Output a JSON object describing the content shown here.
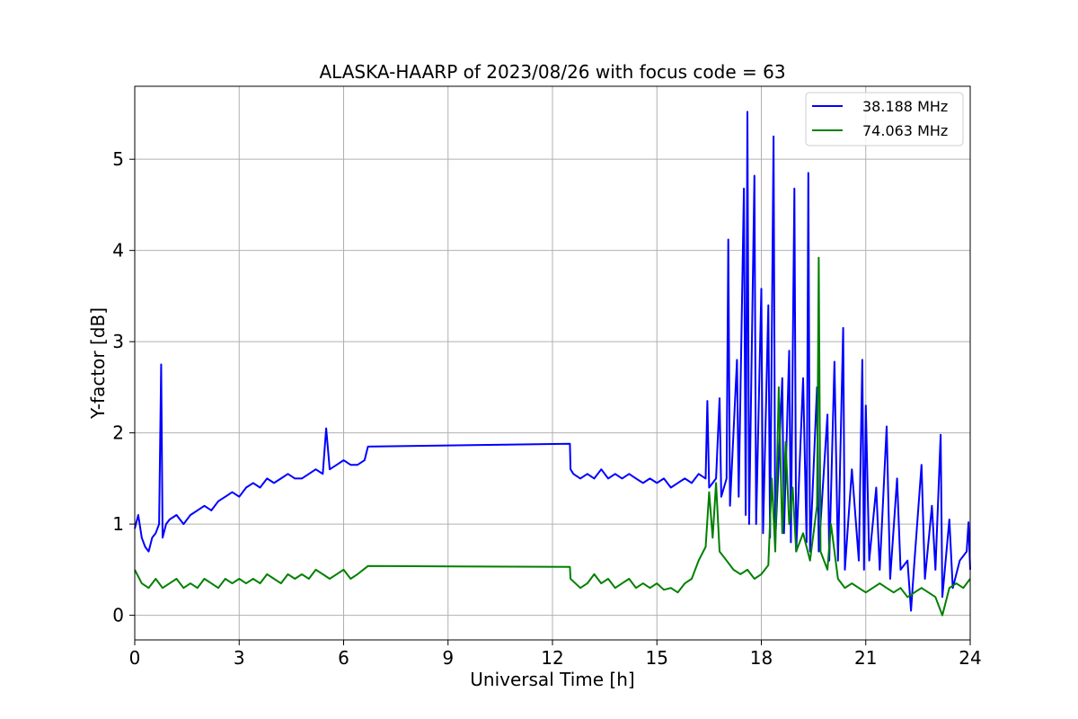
{
  "chart_data": {
    "type": "line",
    "title": "ALASKA-HAARP of 2023/08/26 with focus code = 63",
    "xlabel": "Universal Time [h]",
    "ylabel": "Y-factor [dB]",
    "xlim": [
      0,
      24
    ],
    "ylim": [
      -0.27,
      5.8
    ],
    "xticks": [
      "0",
      "3",
      "6",
      "9",
      "12",
      "15",
      "18",
      "21",
      "24"
    ],
    "yticks": [
      "0",
      "1",
      "2",
      "3",
      "4",
      "5"
    ],
    "grid": true,
    "legend_position": "top-right",
    "series": [
      {
        "name": "38.188 MHz",
        "color": "#0000ff",
        "points": [
          [
            0.0,
            0.95
          ],
          [
            0.1,
            1.1
          ],
          [
            0.2,
            0.85
          ],
          [
            0.3,
            0.75
          ],
          [
            0.4,
            0.7
          ],
          [
            0.5,
            0.85
          ],
          [
            0.6,
            0.9
          ],
          [
            0.7,
            1.0
          ],
          [
            0.76,
            2.75
          ],
          [
            0.8,
            0.85
          ],
          [
            0.9,
            1.0
          ],
          [
            1.0,
            1.05
          ],
          [
            1.2,
            1.1
          ],
          [
            1.4,
            1.0
          ],
          [
            1.6,
            1.1
          ],
          [
            1.8,
            1.15
          ],
          [
            2.0,
            1.2
          ],
          [
            2.2,
            1.15
          ],
          [
            2.4,
            1.25
          ],
          [
            2.6,
            1.3
          ],
          [
            2.8,
            1.35
          ],
          [
            3.0,
            1.3
          ],
          [
            3.2,
            1.4
          ],
          [
            3.4,
            1.45
          ],
          [
            3.6,
            1.4
          ],
          [
            3.8,
            1.5
          ],
          [
            4.0,
            1.45
          ],
          [
            4.2,
            1.5
          ],
          [
            4.4,
            1.55
          ],
          [
            4.6,
            1.5
          ],
          [
            4.8,
            1.5
          ],
          [
            5.0,
            1.55
          ],
          [
            5.2,
            1.6
          ],
          [
            5.4,
            1.55
          ],
          [
            5.5,
            2.05
          ],
          [
            5.6,
            1.6
          ],
          [
            5.8,
            1.65
          ],
          [
            6.0,
            1.7
          ],
          [
            6.2,
            1.65
          ],
          [
            6.4,
            1.65
          ],
          [
            6.6,
            1.7
          ],
          [
            6.7,
            1.85
          ],
          [
            12.5,
            1.88
          ],
          [
            12.52,
            1.6
          ],
          [
            12.6,
            1.55
          ],
          [
            12.8,
            1.5
          ],
          [
            13.0,
            1.55
          ],
          [
            13.2,
            1.5
          ],
          [
            13.4,
            1.6
          ],
          [
            13.6,
            1.5
          ],
          [
            13.8,
            1.55
          ],
          [
            14.0,
            1.5
          ],
          [
            14.2,
            1.55
          ],
          [
            14.4,
            1.5
          ],
          [
            14.6,
            1.45
          ],
          [
            14.8,
            1.5
          ],
          [
            15.0,
            1.45
          ],
          [
            15.2,
            1.5
          ],
          [
            15.4,
            1.4
          ],
          [
            15.6,
            1.45
          ],
          [
            15.8,
            1.5
          ],
          [
            16.0,
            1.45
          ],
          [
            16.2,
            1.55
          ],
          [
            16.4,
            1.5
          ],
          [
            16.45,
            2.35
          ],
          [
            16.5,
            1.4
          ],
          [
            16.7,
            1.5
          ],
          [
            16.8,
            2.38
          ],
          [
            16.85,
            1.3
          ],
          [
            17.0,
            1.5
          ],
          [
            17.05,
            4.12
          ],
          [
            17.1,
            1.2
          ],
          [
            17.3,
            2.8
          ],
          [
            17.35,
            1.3
          ],
          [
            17.5,
            4.68
          ],
          [
            17.55,
            1.1
          ],
          [
            17.6,
            5.52
          ],
          [
            17.65,
            1.0
          ],
          [
            17.8,
            4.82
          ],
          [
            17.85,
            1.0
          ],
          [
            18.0,
            3.58
          ],
          [
            18.05,
            0.9
          ],
          [
            18.2,
            3.4
          ],
          [
            18.25,
            0.85
          ],
          [
            18.35,
            5.25
          ],
          [
            18.4,
            0.8
          ],
          [
            18.6,
            2.6
          ],
          [
            18.65,
            0.9
          ],
          [
            18.8,
            2.9
          ],
          [
            18.85,
            0.8
          ],
          [
            18.95,
            4.68
          ],
          [
            19.0,
            0.7
          ],
          [
            19.2,
            2.6
          ],
          [
            19.3,
            0.8
          ],
          [
            19.35,
            4.85
          ],
          [
            19.4,
            0.7
          ],
          [
            19.6,
            2.5
          ],
          [
            19.65,
            0.7
          ],
          [
            19.9,
            2.2
          ],
          [
            19.95,
            0.6
          ],
          [
            20.1,
            2.78
          ],
          [
            20.2,
            0.6
          ],
          [
            20.35,
            3.15
          ],
          [
            20.4,
            0.5
          ],
          [
            20.6,
            1.6
          ],
          [
            20.8,
            0.6
          ],
          [
            20.9,
            2.8
          ],
          [
            20.95,
            0.5
          ],
          [
            21.0,
            2.3
          ],
          [
            21.1,
            0.6
          ],
          [
            21.3,
            1.4
          ],
          [
            21.4,
            0.5
          ],
          [
            21.6,
            2.07
          ],
          [
            21.7,
            0.4
          ],
          [
            21.9,
            1.5
          ],
          [
            22.0,
            0.5
          ],
          [
            22.2,
            0.6
          ],
          [
            22.3,
            0.05
          ],
          [
            22.4,
            0.6
          ],
          [
            22.6,
            1.65
          ],
          [
            22.7,
            0.4
          ],
          [
            22.9,
            1.2
          ],
          [
            23.0,
            0.5
          ],
          [
            23.15,
            1.98
          ],
          [
            23.2,
            0.2
          ],
          [
            23.4,
            1.05
          ],
          [
            23.5,
            0.3
          ],
          [
            23.7,
            0.6
          ],
          [
            23.9,
            0.7
          ],
          [
            23.95,
            1.02
          ],
          [
            24.0,
            0.5
          ]
        ]
      },
      {
        "name": "74.063 MHz",
        "color": "#008000",
        "points": [
          [
            0.0,
            0.5
          ],
          [
            0.2,
            0.35
          ],
          [
            0.4,
            0.3
          ],
          [
            0.6,
            0.4
          ],
          [
            0.8,
            0.3
          ],
          [
            1.0,
            0.35
          ],
          [
            1.2,
            0.4
          ],
          [
            1.4,
            0.3
          ],
          [
            1.6,
            0.35
          ],
          [
            1.8,
            0.3
          ],
          [
            2.0,
            0.4
          ],
          [
            2.2,
            0.35
          ],
          [
            2.4,
            0.3
          ],
          [
            2.6,
            0.4
          ],
          [
            2.8,
            0.35
          ],
          [
            3.0,
            0.4
          ],
          [
            3.2,
            0.35
          ],
          [
            3.4,
            0.4
          ],
          [
            3.6,
            0.35
          ],
          [
            3.8,
            0.45
          ],
          [
            4.0,
            0.4
          ],
          [
            4.2,
            0.35
          ],
          [
            4.4,
            0.45
          ],
          [
            4.6,
            0.4
          ],
          [
            4.8,
            0.45
          ],
          [
            5.0,
            0.4
          ],
          [
            5.2,
            0.5
          ],
          [
            5.4,
            0.45
          ],
          [
            5.6,
            0.4
          ],
          [
            5.8,
            0.45
          ],
          [
            6.0,
            0.5
          ],
          [
            6.2,
            0.4
          ],
          [
            6.4,
            0.45
          ],
          [
            6.7,
            0.54
          ],
          [
            12.5,
            0.53
          ],
          [
            12.52,
            0.4
          ],
          [
            12.8,
            0.3
          ],
          [
            13.0,
            0.35
          ],
          [
            13.2,
            0.45
          ],
          [
            13.4,
            0.35
          ],
          [
            13.6,
            0.4
          ],
          [
            13.8,
            0.3
          ],
          [
            14.0,
            0.35
          ],
          [
            14.2,
            0.4
          ],
          [
            14.4,
            0.3
          ],
          [
            14.6,
            0.35
          ],
          [
            14.8,
            0.3
          ],
          [
            15.0,
            0.35
          ],
          [
            15.2,
            0.28
          ],
          [
            15.4,
            0.3
          ],
          [
            15.6,
            0.25
          ],
          [
            15.8,
            0.35
          ],
          [
            16.0,
            0.4
          ],
          [
            16.2,
            0.6
          ],
          [
            16.4,
            0.75
          ],
          [
            16.5,
            1.35
          ],
          [
            16.6,
            0.85
          ],
          [
            16.7,
            1.45
          ],
          [
            16.8,
            0.7
          ],
          [
            17.0,
            0.6
          ],
          [
            17.2,
            0.5
          ],
          [
            17.4,
            0.45
          ],
          [
            17.6,
            0.5
          ],
          [
            17.8,
            0.4
          ],
          [
            18.0,
            0.45
          ],
          [
            18.2,
            0.55
          ],
          [
            18.3,
            1.5
          ],
          [
            18.4,
            0.7
          ],
          [
            18.5,
            2.5
          ],
          [
            18.6,
            0.9
          ],
          [
            18.7,
            1.9
          ],
          [
            18.8,
            1.0
          ],
          [
            18.9,
            1.4
          ],
          [
            19.0,
            0.7
          ],
          [
            19.2,
            0.9
          ],
          [
            19.4,
            0.6
          ],
          [
            19.6,
            1.2
          ],
          [
            19.65,
            3.92
          ],
          [
            19.7,
            0.7
          ],
          [
            19.9,
            0.5
          ],
          [
            20.0,
            1.0
          ],
          [
            20.2,
            0.4
          ],
          [
            20.4,
            0.3
          ],
          [
            20.6,
            0.35
          ],
          [
            20.8,
            0.3
          ],
          [
            21.0,
            0.25
          ],
          [
            21.2,
            0.3
          ],
          [
            21.4,
            0.35
          ],
          [
            21.6,
            0.3
          ],
          [
            21.8,
            0.25
          ],
          [
            22.0,
            0.3
          ],
          [
            22.2,
            0.2
          ],
          [
            22.4,
            0.25
          ],
          [
            22.6,
            0.3
          ],
          [
            22.8,
            0.25
          ],
          [
            23.0,
            0.2
          ],
          [
            23.2,
            0.0
          ],
          [
            23.4,
            0.3
          ],
          [
            23.6,
            0.35
          ],
          [
            23.8,
            0.3
          ],
          [
            24.0,
            0.4
          ]
        ]
      }
    ]
  }
}
